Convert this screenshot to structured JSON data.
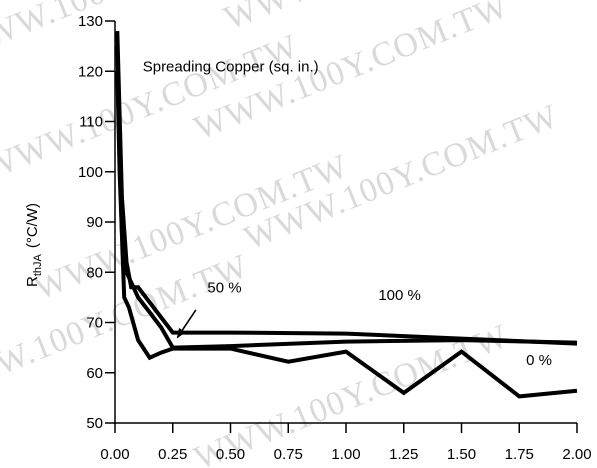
{
  "chart_data": {
    "type": "line",
    "title": "",
    "ylabel_main": "R",
    "ylabel_sub": "thJA",
    "ylabel_unit": "(°C/W)",
    "xlabel": "",
    "xlim": [
      0,
      2.0
    ],
    "ylim": [
      50,
      130
    ],
    "x_ticks": [
      "0.00",
      "0.25",
      "0.50",
      "0.75",
      "1.00",
      "1.25",
      "1.50",
      "1.75",
      "2.00"
    ],
    "x_tick_values": [
      0,
      0.25,
      0.5,
      0.75,
      1.0,
      1.25,
      1.5,
      1.75,
      2.0
    ],
    "y_ticks": [
      "50",
      "60",
      "70",
      "80",
      "90",
      "100",
      "110",
      "120",
      "130"
    ],
    "y_tick_values": [
      50,
      60,
      70,
      80,
      90,
      100,
      110,
      120,
      130
    ],
    "grid": false,
    "legend": "none",
    "line_color": "#000000",
    "series": [
      {
        "name": "100 %",
        "x": [
          0.01,
          0.03,
          0.05,
          0.07,
          0.1,
          0.15,
          0.2,
          0.25,
          0.5,
          1.0,
          1.5,
          2.0
        ],
        "y": [
          128,
          95,
          82,
          77,
          77,
          74,
          71,
          68,
          68,
          67.8,
          66.8,
          65.8
        ]
      },
      {
        "name": "50 %",
        "x": [
          0.01,
          0.03,
          0.05,
          0.07,
          0.1,
          0.15,
          0.2,
          0.25,
          0.5,
          1.0,
          1.5,
          2.0
        ],
        "y": [
          125,
          88,
          80,
          78,
          75,
          72,
          69,
          65,
          65.3,
          66.2,
          66.5,
          66
        ]
      },
      {
        "name": "0 %",
        "x": [
          0.01,
          0.02,
          0.04,
          0.06,
          0.1,
          0.15,
          0.2,
          0.25,
          0.5,
          0.75,
          1.0,
          1.25,
          1.5,
          1.75,
          2.0
        ],
        "y": [
          120,
          100,
          75,
          73,
          66.5,
          63,
          64,
          64.8,
          64.8,
          62.2,
          64.2,
          56,
          64.2,
          55.3,
          56.4
        ]
      }
    ],
    "annotations": [
      {
        "text": "Spreading Copper (sq. in.)",
        "x": 0.12,
        "y": 120
      },
      {
        "text": "50 %",
        "x": 0.4,
        "y": 76
      },
      {
        "text": "100 %",
        "x": 1.14,
        "y": 74.5
      },
      {
        "text": "0 %",
        "x": 1.78,
        "y": 61.5
      }
    ],
    "arrow": {
      "from": [
        0.35,
        72.5
      ],
      "to": [
        0.27,
        67
      ]
    }
  },
  "watermark": "WWW.100Y.COM.TW"
}
